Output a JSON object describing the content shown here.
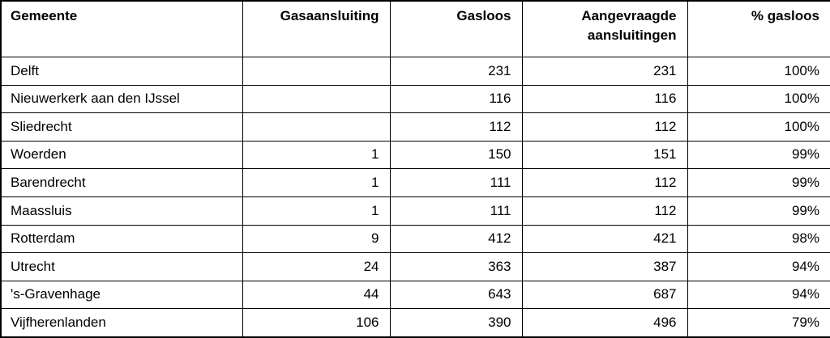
{
  "table": {
    "title": "gasloos-per-gemeente",
    "columns": [
      {
        "key": "gemeente",
        "label": "Gemeente",
        "align": "left"
      },
      {
        "key": "gasaansluiting",
        "label": "Gasaansluiting",
        "align": "right"
      },
      {
        "key": "gasloos",
        "label": "Gasloos",
        "align": "right"
      },
      {
        "key": "aangevraagde-aansluitingen",
        "label": "Aangevraagde aansluitingen",
        "align": "right"
      },
      {
        "key": "pct-gasloos",
        "label": "% gasloos",
        "align": "right"
      }
    ],
    "rows": [
      [
        "Delft",
        "",
        "231",
        "231",
        "100%"
      ],
      [
        "Nieuwerkerk aan den IJssel",
        "",
        "116",
        "116",
        "100%"
      ],
      [
        "Sliedrecht",
        "",
        "112",
        "112",
        "100%"
      ],
      [
        "Woerden",
        "1",
        "150",
        "151",
        "99%"
      ],
      [
        "Barendrecht",
        "1",
        "111",
        "112",
        "99%"
      ],
      [
        "Maassluis",
        "1",
        "111",
        "112",
        "99%"
      ],
      [
        "Rotterdam",
        "9",
        "412",
        "421",
        "98%"
      ],
      [
        "Utrecht",
        "24",
        "363",
        "387",
        "94%"
      ],
      [
        "'s-Gravenhage",
        "44",
        "643",
        "687",
        "94%"
      ],
      [
        "Vijfherenlanden",
        "106",
        "390",
        "496",
        "79%"
      ]
    ]
  },
  "colors": {
    "border": "#000000",
    "text": "#000000",
    "background": "#ffffff"
  }
}
